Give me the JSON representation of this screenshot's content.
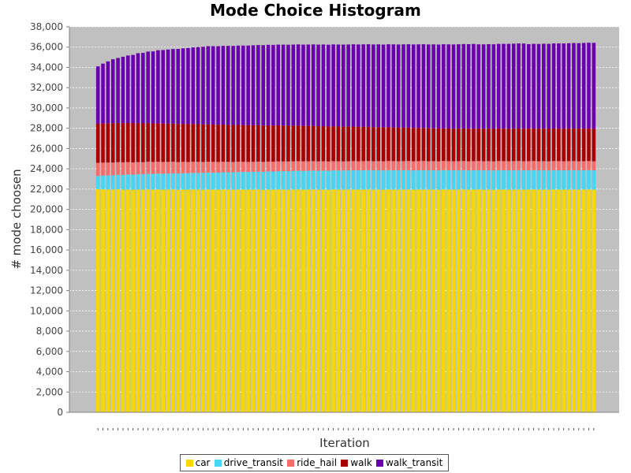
{
  "chart_data": {
    "type": "bar",
    "stacked": true,
    "title": "Mode Choice Histogram",
    "xlabel": "Iteration",
    "ylabel": "# mode choosen",
    "ylim": [
      0,
      38000
    ],
    "yticks": [
      0,
      2000,
      4000,
      6000,
      8000,
      10000,
      12000,
      14000,
      16000,
      18000,
      20000,
      22000,
      24000,
      26000,
      28000,
      30000,
      32000,
      34000,
      36000,
      38000
    ],
    "ytick_labels": [
      "0",
      "2,000",
      "4,000",
      "6,000",
      "8,000",
      "10,000",
      "12,000",
      "14,000",
      "16,000",
      "18,000",
      "20,000",
      "22,000",
      "24,000",
      "26,000",
      "28,000",
      "30,000",
      "32,000",
      "34,000",
      "36,000",
      "38,000"
    ],
    "grid": true,
    "legend_position": "bottom",
    "categories": [
      "0",
      "1",
      "2",
      "3",
      "4",
      "5",
      "6",
      "7",
      "8",
      "9",
      "10",
      "11",
      "12",
      "13",
      "14",
      "15",
      "16",
      "17",
      "18",
      "19",
      "20",
      "21",
      "22",
      "23",
      "24",
      "25",
      "26",
      "27",
      "28",
      "29",
      "30",
      "31",
      "32",
      "33",
      "34",
      "35",
      "36",
      "37",
      "38",
      "39",
      "40",
      "41",
      "42",
      "43",
      "44",
      "45",
      "46",
      "47",
      "48",
      "49",
      "50",
      "51",
      "52",
      "53",
      "54",
      "55",
      "56",
      "57",
      "58",
      "59",
      "60",
      "61",
      "62",
      "63",
      "64",
      "65",
      "66",
      "67",
      "68",
      "69",
      "70",
      "71",
      "72",
      "73",
      "74",
      "75",
      "76",
      "77",
      "78",
      "79",
      "80",
      "81",
      "82",
      "83",
      "84",
      "85",
      "86",
      "87",
      "88",
      "89",
      "90",
      "91",
      "92",
      "93",
      "94",
      "95",
      "96",
      "97",
      "98",
      "99"
    ],
    "series": [
      {
        "name": "car",
        "color": "#f7d800",
        "values": [
          22000,
          21980,
          21970,
          21960,
          21990,
          21950,
          21970,
          21940,
          21960,
          21950,
          21980,
          21960,
          21970,
          21950,
          21960,
          21970,
          21940,
          21960,
          21950,
          21970,
          21960,
          21950,
          21970,
          21960,
          21950,
          21970,
          21960,
          21950,
          21970,
          21960,
          21950,
          21960,
          21970,
          21940,
          21960,
          21950,
          21970,
          21960,
          21950,
          21960,
          21970,
          21950,
          21960,
          21970,
          21950,
          21960,
          21940,
          21970,
          21960,
          21950,
          21960,
          21970,
          21950,
          21960,
          21970,
          21950,
          21960,
          21940,
          21970,
          21960,
          21950,
          21960,
          21970,
          21950,
          21960,
          21970,
          21950,
          21960,
          21940,
          21970,
          21960,
          21950,
          21960,
          21970,
          21950,
          21960,
          21970,
          21950,
          21960,
          21940,
          21970,
          21960,
          21950,
          21960,
          21970,
          21950,
          21960,
          21970,
          21950,
          21960,
          21940,
          21970,
          21960,
          21950,
          21960,
          21970,
          21950,
          21960,
          21970,
          21950
        ]
      },
      {
        "name": "drive_transit",
        "color": "#44d6f4",
        "values": [
          1300,
          1350,
          1380,
          1400,
          1420,
          1450,
          1470,
          1480,
          1500,
          1510,
          1530,
          1540,
          1560,
          1570,
          1580,
          1590,
          1600,
          1610,
          1620,
          1630,
          1640,
          1650,
          1660,
          1670,
          1680,
          1690,
          1700,
          1710,
          1720,
          1730,
          1740,
          1750,
          1760,
          1770,
          1780,
          1790,
          1800,
          1810,
          1820,
          1830,
          1840,
          1845,
          1850,
          1855,
          1860,
          1865,
          1870,
          1875,
          1880,
          1885,
          1890,
          1895,
          1900,
          1900,
          1900,
          1900,
          1900,
          1900,
          1900,
          1900,
          1900,
          1900,
          1900,
          1900,
          1900,
          1900,
          1900,
          1900,
          1900,
          1900,
          1900,
          1900,
          1900,
          1900,
          1900,
          1900,
          1900,
          1900,
          1900,
          1900,
          1900,
          1900,
          1900,
          1900,
          1900,
          1900,
          1900,
          1900,
          1900,
          1900,
          1900,
          1900,
          1900,
          1900,
          1900,
          1900,
          1900,
          1900,
          1900,
          1900
        ]
      },
      {
        "name": "ride_hail",
        "color": "#f86b6b",
        "values": [
          1300,
          1280,
          1270,
          1260,
          1250,
          1240,
          1230,
          1220,
          1210,
          1200,
          1190,
          1180,
          1170,
          1160,
          1150,
          1140,
          1130,
          1120,
          1110,
          1100,
          1090,
          1080,
          1070,
          1060,
          1050,
          1040,
          1030,
          1020,
          1010,
          1000,
          995,
          990,
          985,
          980,
          975,
          970,
          965,
          960,
          955,
          950,
          945,
          940,
          935,
          930,
          925,
          920,
          915,
          910,
          905,
          900,
          900,
          900,
          900,
          900,
          900,
          900,
          900,
          900,
          900,
          900,
          900,
          900,
          900,
          900,
          900,
          900,
          900,
          900,
          900,
          900,
          900,
          900,
          900,
          900,
          900,
          900,
          900,
          900,
          900,
          900,
          900,
          900,
          900,
          900,
          900,
          900,
          900,
          900,
          900,
          900,
          900,
          900,
          900,
          900,
          900,
          900,
          900,
          900,
          900,
          900
        ]
      },
      {
        "name": "walk",
        "color": "#a80000",
        "values": [
          3850,
          3860,
          3870,
          3880,
          3870,
          3860,
          3850,
          3840,
          3830,
          3820,
          3810,
          3800,
          3790,
          3780,
          3770,
          3760,
          3750,
          3740,
          3730,
          3720,
          3710,
          3700,
          3690,
          3680,
          3670,
          3660,
          3650,
          3640,
          3630,
          3620,
          3610,
          3600,
          3590,
          3580,
          3570,
          3560,
          3550,
          3540,
          3530,
          3520,
          3510,
          3500,
          3490,
          3480,
          3470,
          3460,
          3450,
          3440,
          3430,
          3420,
          3410,
          3400,
          3390,
          3380,
          3370,
          3360,
          3350,
          3340,
          3330,
          3320,
          3310,
          3300,
          3290,
          3280,
          3270,
          3260,
          3250,
          3240,
          3230,
          3220,
          3210,
          3200,
          3200,
          3200,
          3200,
          3200,
          3200,
          3200,
          3200,
          3200,
          3200,
          3200,
          3200,
          3200,
          3200,
          3200,
          3200,
          3200,
          3200,
          3200,
          3200,
          3200,
          3200,
          3200,
          3200,
          3200,
          3200,
          3200,
          3200,
          3200
        ]
      },
      {
        "name": "walk_transit",
        "color": "#6a00b0",
        "values": [
          5650,
          5900,
          6100,
          6300,
          6400,
          6550,
          6650,
          6750,
          6900,
          6950,
          7050,
          7100,
          7200,
          7250,
          7300,
          7350,
          7400,
          7450,
          7500,
          7550,
          7600,
          7650,
          7700,
          7720,
          7740,
          7760,
          7780,
          7800,
          7820,
          7840,
          7860,
          7880,
          7900,
          7920,
          7940,
          7950,
          7960,
          7970,
          7980,
          7990,
          8000,
          8010,
          8020,
          8030,
          8040,
          8050,
          8060,
          8070,
          8080,
          8090,
          8100,
          8110,
          8120,
          8130,
          8140,
          8150,
          8160,
          8170,
          8180,
          8190,
          8200,
          8210,
          8220,
          8230,
          8240,
          8250,
          8260,
          8270,
          8280,
          8290,
          8300,
          8310,
          8320,
          8330,
          8340,
          8350,
          8300,
          8320,
          8330,
          8340,
          8350,
          8360,
          8370,
          8380,
          8390,
          8400,
          8330,
          8350,
          8360,
          8370,
          8380,
          8390,
          8400,
          8410,
          8420,
          8430,
          8440,
          8450,
          8460,
          8470
        ]
      }
    ]
  },
  "colors": {
    "plot_background": "#c0c0c0",
    "gridline": "#ffffff"
  }
}
